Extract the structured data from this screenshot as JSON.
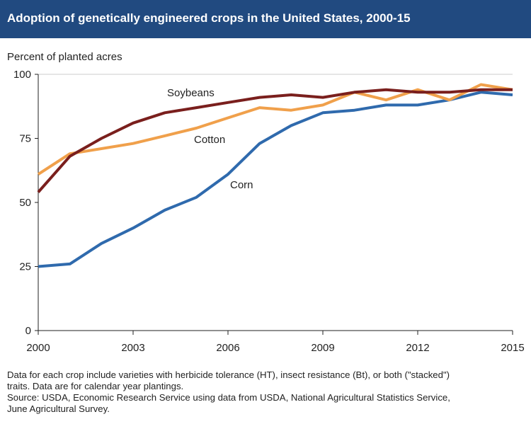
{
  "header": {
    "title": "Adoption of genetically engineered crops in the United States, 2000-15"
  },
  "colors": {
    "header_bg": "#214a80",
    "soybeans": "#7a1f1d",
    "cotton": "#f0a04b",
    "corn": "#2f6aad",
    "axis": "#222222",
    "grid": "#cccccc"
  },
  "chart_data": {
    "type": "line",
    "ylabel": "Percent of planted acres",
    "ylim": [
      0,
      100
    ],
    "yticks": [
      0,
      25,
      50,
      75,
      100
    ],
    "xlim": [
      2000,
      2015
    ],
    "xticks": [
      2000,
      2003,
      2006,
      2009,
      2012,
      2015
    ],
    "grid": "horizontal at 100 only",
    "x": [
      2000,
      2001,
      2002,
      2003,
      2004,
      2005,
      2006,
      2007,
      2008,
      2009,
      2010,
      2011,
      2012,
      2013,
      2014,
      2015
    ],
    "series": [
      {
        "name": "Soybeans",
        "color": "#7a1f1d",
        "values": [
          54,
          68,
          75,
          81,
          85,
          87,
          89,
          91,
          92,
          91,
          93,
          94,
          93,
          93,
          94,
          94
        ]
      },
      {
        "name": "Cotton",
        "color": "#f0a04b",
        "values": [
          61,
          69,
          71,
          73,
          76,
          79,
          83,
          87,
          86,
          88,
          93,
          90,
          94,
          90,
          96,
          94
        ]
      },
      {
        "name": "Corn",
        "color": "#2f6aad",
        "values": [
          25,
          26,
          34,
          40,
          47,
          52,
          61,
          73,
          80,
          85,
          86,
          88,
          88,
          90,
          93,
          92
        ]
      }
    ]
  },
  "notes": {
    "line1": "Data for each crop include varieties with herbicide tolerance (HT), insect resistance (Bt), or both (\"stacked\")",
    "line2": "traits. Data are for calendar year plantings.",
    "line3": "Source: USDA, Economic Research Service using data from USDA, National Agricultural Statistics Service,",
    "line4": "June Agricultural Survey."
  }
}
